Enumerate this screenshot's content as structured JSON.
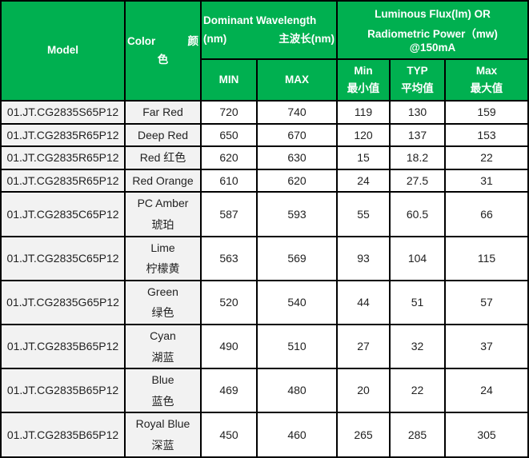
{
  "header": {
    "model": "Model",
    "color_en": "Color",
    "color_cn_1": "颜",
    "color_cn_2": "色",
    "wavelength_1": "Dominant Wavelength",
    "wavelength_2": "(nm)",
    "wavelength_cn": "主波长(nm)",
    "flux_1": "Luminous Flux(lm) OR",
    "flux_2": "Radiometric Power（mw)",
    "flux_3": "@150mA",
    "wl_min": "MIN",
    "wl_max": "MAX",
    "fl_min": "Min",
    "fl_min_cn": "最小值",
    "fl_typ": "TYP",
    "fl_typ_cn": "平均值",
    "fl_max": "Max",
    "fl_max_cn": "最大值"
  },
  "rows": [
    {
      "model": "01.JT.CG2835S65P12",
      "color": "Far Red",
      "color_cn": "",
      "wl_min": "720",
      "wl_max": "740",
      "fl_min": "119",
      "fl_typ": "130",
      "fl_max": "159"
    },
    {
      "model": "01.JT.CG2835R65P12",
      "color": "Deep Red",
      "color_cn": "",
      "wl_min": "650",
      "wl_max": "670",
      "fl_min": "120",
      "fl_typ": "137",
      "fl_max": "153"
    },
    {
      "model": "01.JT.CG2835R65P12",
      "color": "Red 红色",
      "color_cn": "",
      "wl_min": "620",
      "wl_max": "630",
      "fl_min": "15",
      "fl_typ": "18.2",
      "fl_max": "22"
    },
    {
      "model": "01.JT.CG2835R65P12",
      "color": "Red Orange",
      "color_cn": "",
      "wl_min": "610",
      "wl_max": "620",
      "fl_min": "24",
      "fl_typ": "27.5",
      "fl_max": "31"
    },
    {
      "model": "01.JT.CG2835C65P12",
      "color": "PC Amber",
      "color_cn": "琥珀",
      "wl_min": "587",
      "wl_max": "593",
      "fl_min": "55",
      "fl_typ": "60.5",
      "fl_max": "66"
    },
    {
      "model": "01.JT.CG2835C65P12",
      "color": "Lime",
      "color_cn": "柠檬黄",
      "wl_min": "563",
      "wl_max": "569",
      "fl_min": "93",
      "fl_typ": "104",
      "fl_max": "115"
    },
    {
      "model": "01.JT.CG2835G65P12",
      "color": "Green",
      "color_cn": "绿色",
      "wl_min": "520",
      "wl_max": "540",
      "fl_min": "44",
      "fl_typ": "51",
      "fl_max": "57"
    },
    {
      "model": "01.JT.CG2835B65P12",
      "color": "Cyan",
      "color_cn": "湖蓝",
      "wl_min": "490",
      "wl_max": "510",
      "fl_min": "27",
      "fl_typ": "32",
      "fl_max": "37"
    },
    {
      "model": "01.JT.CG2835B65P12",
      "color": "Blue",
      "color_cn": "蓝色",
      "wl_min": "469",
      "wl_max": "480",
      "fl_min": "20",
      "fl_typ": "22",
      "fl_max": "24"
    },
    {
      "model": "01.JT.CG2835B65P12",
      "color": "Royal Blue",
      "color_cn": "深蓝",
      "wl_min": "450",
      "wl_max": "460",
      "fl_min": "265",
      "fl_typ": "285",
      "fl_max": "305"
    }
  ]
}
